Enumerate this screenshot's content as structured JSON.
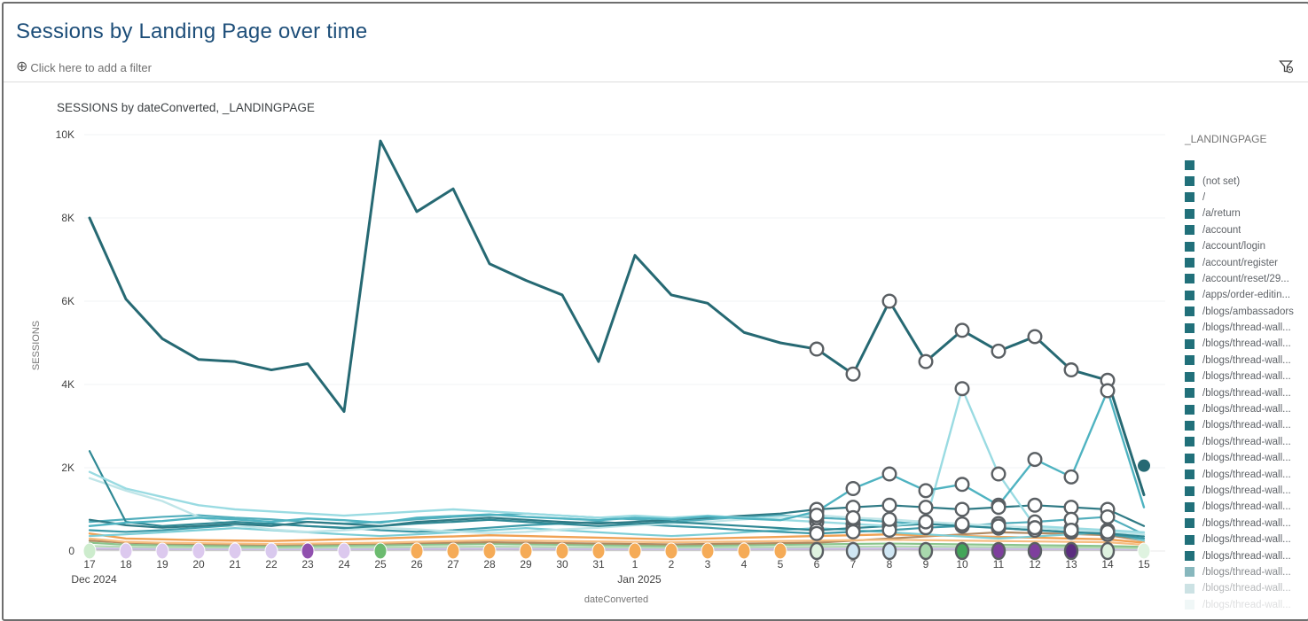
{
  "page": {
    "title": "Sessions by Landing Page over time"
  },
  "filter_bar": {
    "add_filter_icon": "plus-circle-icon",
    "add_filter_label": "Click here to add a filter",
    "filter_icon": "filter-funnel-icon"
  },
  "chart": {
    "title": "SESSIONS by dateConverted, _LANDINGPAGE",
    "y_axis_title": "SESSIONS",
    "x_axis_title": "dateConverted"
  },
  "legend": {
    "title": "_LANDINGPAGE",
    "items": [
      {
        "label": "",
        "swatch": "#21707a",
        "opacity": 1
      },
      {
        "label": "(not set)",
        "swatch": "#21707a",
        "opacity": 1
      },
      {
        "label": "/",
        "swatch": "#21707a",
        "opacity": 1
      },
      {
        "label": "/a/return",
        "swatch": "#21707a",
        "opacity": 1
      },
      {
        "label": "/account",
        "swatch": "#21707a",
        "opacity": 1
      },
      {
        "label": "/account/login",
        "swatch": "#21707a",
        "opacity": 1
      },
      {
        "label": "/account/register",
        "swatch": "#21707a",
        "opacity": 1
      },
      {
        "label": "/account/reset/29...",
        "swatch": "#21707a",
        "opacity": 1
      },
      {
        "label": "/apps/order-editin...",
        "swatch": "#21707a",
        "opacity": 1
      },
      {
        "label": "/blogs/ambassadors",
        "swatch": "#21707a",
        "opacity": 1
      },
      {
        "label": "/blogs/thread-wall...",
        "swatch": "#21707a",
        "opacity": 1
      },
      {
        "label": "/blogs/thread-wall...",
        "swatch": "#21707a",
        "opacity": 1
      },
      {
        "label": "/blogs/thread-wall...",
        "swatch": "#21707a",
        "opacity": 1
      },
      {
        "label": "/blogs/thread-wall...",
        "swatch": "#21707a",
        "opacity": 1
      },
      {
        "label": "/blogs/thread-wall...",
        "swatch": "#21707a",
        "opacity": 1
      },
      {
        "label": "/blogs/thread-wall...",
        "swatch": "#21707a",
        "opacity": 1
      },
      {
        "label": "/blogs/thread-wall...",
        "swatch": "#21707a",
        "opacity": 1
      },
      {
        "label": "/blogs/thread-wall...",
        "swatch": "#21707a",
        "opacity": 1
      },
      {
        "label": "/blogs/thread-wall...",
        "swatch": "#21707a",
        "opacity": 1
      },
      {
        "label": "/blogs/thread-wall...",
        "swatch": "#21707a",
        "opacity": 1
      },
      {
        "label": "/blogs/thread-wall...",
        "swatch": "#21707a",
        "opacity": 1
      },
      {
        "label": "/blogs/thread-wall...",
        "swatch": "#21707a",
        "opacity": 1
      },
      {
        "label": "/blogs/thread-wall...",
        "swatch": "#21707a",
        "opacity": 1
      },
      {
        "label": "/blogs/thread-wall...",
        "swatch": "#21707a",
        "opacity": 1
      },
      {
        "label": "/blogs/thread-wall...",
        "swatch": "#21707a",
        "opacity": 1
      },
      {
        "label": "/blogs/thread-wall...",
        "swatch": "#5fa0a8",
        "opacity": 0.75
      },
      {
        "label": "/blogs/thread-wall...",
        "swatch": "#8fbfc4",
        "opacity": 0.45
      },
      {
        "label": "/blogs/thread-wall...",
        "swatch": "#b9d8da",
        "opacity": 0.2
      }
    ]
  },
  "chart_data": {
    "type": "line",
    "title": "SESSIONS by dateConverted, _LANDINGPAGE",
    "xlabel": "dateConverted",
    "ylabel": "SESSIONS",
    "legend_position": "right",
    "grid": "horizontal",
    "ylim": [
      0,
      10000
    ],
    "y_ticks": [
      0,
      2000,
      4000,
      6000,
      8000,
      10000
    ],
    "y_tick_labels": [
      "0",
      "2K",
      "4K",
      "6K",
      "8K",
      "10K"
    ],
    "x_tick_labels": [
      "17",
      "18",
      "19",
      "20",
      "21",
      "22",
      "23",
      "24",
      "25",
      "26",
      "27",
      "28",
      "29",
      "30",
      "31",
      "1",
      "2",
      "3",
      "4",
      "5",
      "6",
      "7",
      "8",
      "9",
      "10",
      "11",
      "12",
      "13",
      "14",
      "15"
    ],
    "month_labels": [
      {
        "index": 0,
        "label": "Dec 2024"
      },
      {
        "index": 15,
        "label": "Jan 2025"
      }
    ],
    "highlighted_day_indices": [
      20,
      21,
      22,
      23,
      24,
      25,
      26,
      27,
      28
    ],
    "ring_series": [
      "main-dark-teal",
      "cyan-medium-spike",
      "cyan-light-spike",
      "teal-dark-flat",
      "teal-start-high",
      "teal-weave-1",
      "teal-weave-2",
      "aqua-pale"
    ],
    "series": [
      {
        "name": "gray-flat",
        "color": "#b9b9b9",
        "width": 2,
        "values": [
          35,
          32,
          30,
          30,
          28,
          28,
          28,
          30,
          30,
          32,
          32,
          34,
          32,
          32,
          30,
          30,
          28,
          30,
          30,
          32,
          32,
          34,
          34,
          32,
          32,
          30,
          30,
          28,
          28,
          25
        ]
      },
      {
        "name": "lavender-flat",
        "color": "#cdbce6",
        "width": 2.2,
        "values": [
          60,
          55,
          50,
          48,
          46,
          44,
          46,
          48,
          50,
          52,
          54,
          56,
          54,
          52,
          50,
          48,
          46,
          48,
          50,
          52,
          54,
          56,
          58,
          56,
          54,
          52,
          50,
          48,
          46,
          40
        ]
      },
      {
        "name": "green-light",
        "color": "#b5dcb6",
        "width": 2.2,
        "values": [
          120,
          100,
          90,
          85,
          80,
          75,
          80,
          85,
          90,
          95,
          100,
          105,
          100,
          95,
          90,
          85,
          80,
          85,
          90,
          95,
          100,
          105,
          110,
          105,
          100,
          95,
          90,
          85,
          80,
          60
        ]
      },
      {
        "name": "green-mid",
        "color": "#8bc48d",
        "width": 2.2,
        "values": [
          200,
          150,
          140,
          130,
          120,
          110,
          120,
          130,
          140,
          150,
          160,
          170,
          160,
          150,
          140,
          130,
          120,
          130,
          140,
          150,
          160,
          170,
          180,
          170,
          160,
          150,
          140,
          130,
          120,
          100
        ]
      },
      {
        "name": "tan-brown",
        "color": "#b18a62",
        "width": 2.2,
        "values": [
          250,
          200,
          180,
          170,
          160,
          150,
          160,
          170,
          180,
          190,
          200,
          210,
          200,
          190,
          180,
          170,
          160,
          170,
          180,
          190,
          200,
          250,
          300,
          350,
          400,
          450,
          430,
          410,
          380,
          250
        ]
      },
      {
        "name": "orange-light",
        "color": "#f6bd80",
        "width": 2.2,
        "values": [
          300,
          220,
          200,
          190,
          180,
          170,
          180,
          190,
          200,
          220,
          240,
          260,
          250,
          240,
          230,
          220,
          210,
          220,
          230,
          240,
          250,
          260,
          270,
          260,
          250,
          240,
          230,
          220,
          210,
          150
        ]
      },
      {
        "name": "orange-main",
        "color": "#f0a153",
        "width": 2.4,
        "values": [
          420,
          300,
          280,
          260,
          250,
          240,
          260,
          280,
          300,
          330,
          350,
          380,
          360,
          340,
          320,
          300,
          280,
          300,
          320,
          340,
          360,
          380,
          400,
          380,
          360,
          340,
          320,
          300,
          280,
          200
        ]
      },
      {
        "name": "teal-weave-3",
        "color": "#7ccdd6",
        "width": 2.2,
        "values": [
          360,
          400,
          450,
          500,
          550,
          500,
          450,
          400,
          360,
          400,
          450,
          500,
          550,
          500,
          450,
          400,
          360,
          400,
          450,
          500,
          550,
          500,
          450,
          400,
          350,
          300,
          350,
          400,
          450,
          250
        ]
      },
      {
        "name": "teal-weave-2",
        "color": "#3d9aa8",
        "width": 2.2,
        "values": [
          500,
          460,
          500,
          560,
          620,
          660,
          600,
          560,
          500,
          460,
          500,
          560,
          620,
          660,
          700,
          650,
          600,
          560,
          500,
          460,
          420,
          460,
          500,
          560,
          600,
          560,
          500,
          460,
          400,
          300
        ]
      },
      {
        "name": "teal-weave-1",
        "color": "#52aebc",
        "width": 2.2,
        "values": [
          700,
          760,
          820,
          860,
          800,
          760,
          700,
          660,
          700,
          760,
          820,
          860,
          900,
          850,
          800,
          760,
          700,
          760,
          820,
          860,
          800,
          760,
          700,
          650,
          600,
          660,
          700,
          760,
          820,
          400
        ]
      },
      {
        "name": "aqua-pale",
        "color": "#bfe5e8",
        "width": 2.4,
        "values": [
          1750,
          1450,
          1200,
          820,
          620,
          520,
          460,
          500,
          560,
          520,
          470,
          430,
          460,
          520,
          560,
          620,
          660,
          700,
          760,
          820,
          860,
          800,
          760,
          700,
          650,
          600,
          560,
          500,
          460,
          400
        ]
      },
      {
        "name": "teal-start-high",
        "color": "#2f8894",
        "width": 2.2,
        "values": [
          2400,
          700,
          600,
          650,
          700,
          650,
          600,
          550,
          600,
          660,
          700,
          750,
          700,
          650,
          600,
          650,
          700,
          650,
          600,
          550,
          500,
          550,
          600,
          650,
          600,
          550,
          500,
          450,
          420,
          350
        ]
      },
      {
        "name": "teal-dark-flat",
        "color": "#2f7a85",
        "width": 2.2,
        "values": [
          750,
          620,
          560,
          600,
          650,
          600,
          700,
          650,
          600,
          700,
          750,
          800,
          750,
          700,
          660,
          700,
          750,
          800,
          850,
          900,
          1000,
          1050,
          1100,
          1050,
          1000,
          1050,
          1100,
          1050,
          1000,
          600
        ]
      },
      {
        "name": "cyan-light-spike",
        "color": "#9adbe2",
        "width": 2.4,
        "values": [
          1900,
          1500,
          1300,
          1100,
          1000,
          950,
          900,
          850,
          900,
          950,
          1000,
          950,
          900,
          850,
          800,
          850,
          800,
          850,
          800,
          750,
          700,
          650,
          600,
          700,
          3900,
          1850,
          600,
          550,
          500,
          450
        ]
      },
      {
        "name": "cyan-medium-spike",
        "color": "#4fb3c1",
        "width": 2.4,
        "values": [
          600,
          680,
          720,
          800,
          760,
          700,
          780,
          740,
          680,
          800,
          840,
          880,
          820,
          780,
          740,
          800,
          760,
          830,
          780,
          740,
          950,
          1500,
          1850,
          1450,
          1600,
          1100,
          2200,
          1780,
          3850,
          1050
        ]
      },
      {
        "name": "main-dark-teal",
        "color": "#266973",
        "width": 3,
        "values": [
          8000,
          6050,
          5100,
          4600,
          4550,
          4350,
          4500,
          3350,
          9850,
          8150,
          8700,
          6900,
          6500,
          6150,
          4550,
          7100,
          6150,
          5950,
          5250,
          5000,
          4850,
          4250,
          6000,
          4550,
          5300,
          4800,
          5150,
          4350,
          4100,
          1350
        ]
      }
    ],
    "zero_markers": [
      {
        "index": 0,
        "color": "#cdeccd",
        "ring": false
      },
      {
        "index": 1,
        "color": "#dcc9ee",
        "ring": false
      },
      {
        "index": 2,
        "color": "#dcc9ee",
        "ring": false
      },
      {
        "index": 3,
        "color": "#dcc9ee",
        "ring": false
      },
      {
        "index": 4,
        "color": "#dcc9ee",
        "ring": false
      },
      {
        "index": 5,
        "color": "#d9c9ee",
        "ring": false
      },
      {
        "index": 6,
        "color": "#9050ae",
        "ring": false
      },
      {
        "index": 7,
        "color": "#dcc9ee",
        "ring": false
      },
      {
        "index": 8,
        "color": "#6cbb6f",
        "ring": false
      },
      {
        "index": 9,
        "color": "#f5ab57",
        "ring": false
      },
      {
        "index": 10,
        "color": "#f5ab57",
        "ring": false
      },
      {
        "index": 11,
        "color": "#f5ab57",
        "ring": false
      },
      {
        "index": 12,
        "color": "#f5ab57",
        "ring": false
      },
      {
        "index": 13,
        "color": "#f5ab57",
        "ring": false
      },
      {
        "index": 14,
        "color": "#f5ab57",
        "ring": false
      },
      {
        "index": 15,
        "color": "#f5ab57",
        "ring": false
      },
      {
        "index": 16,
        "color": "#f5ab57",
        "ring": false
      },
      {
        "index": 17,
        "color": "#f5ab57",
        "ring": false
      },
      {
        "index": 18,
        "color": "#f5ab57",
        "ring": false
      },
      {
        "index": 19,
        "color": "#f5ab57",
        "ring": false
      },
      {
        "index": 20,
        "color": "#dff3e0",
        "ring": true
      },
      {
        "index": 21,
        "color": "#cfe6f3",
        "ring": true
      },
      {
        "index": 22,
        "color": "#cfe6f3",
        "ring": true
      },
      {
        "index": 23,
        "color": "#a8d8ad",
        "ring": true
      },
      {
        "index": 24,
        "color": "#43a559",
        "ring": true
      },
      {
        "index": 25,
        "color": "#7e3f9d",
        "ring": true
      },
      {
        "index": 26,
        "color": "#7e3f9d",
        "ring": true
      },
      {
        "index": 27,
        "color": "#5b2d7f",
        "ring": true
      },
      {
        "index": 28,
        "color": "#dff3e0",
        "ring": true
      },
      {
        "index": 29,
        "color": "#dff3e0",
        "ring": false
      }
    ],
    "extra_point": {
      "x_index": 29,
      "value": 2050,
      "color": "#266973"
    }
  }
}
